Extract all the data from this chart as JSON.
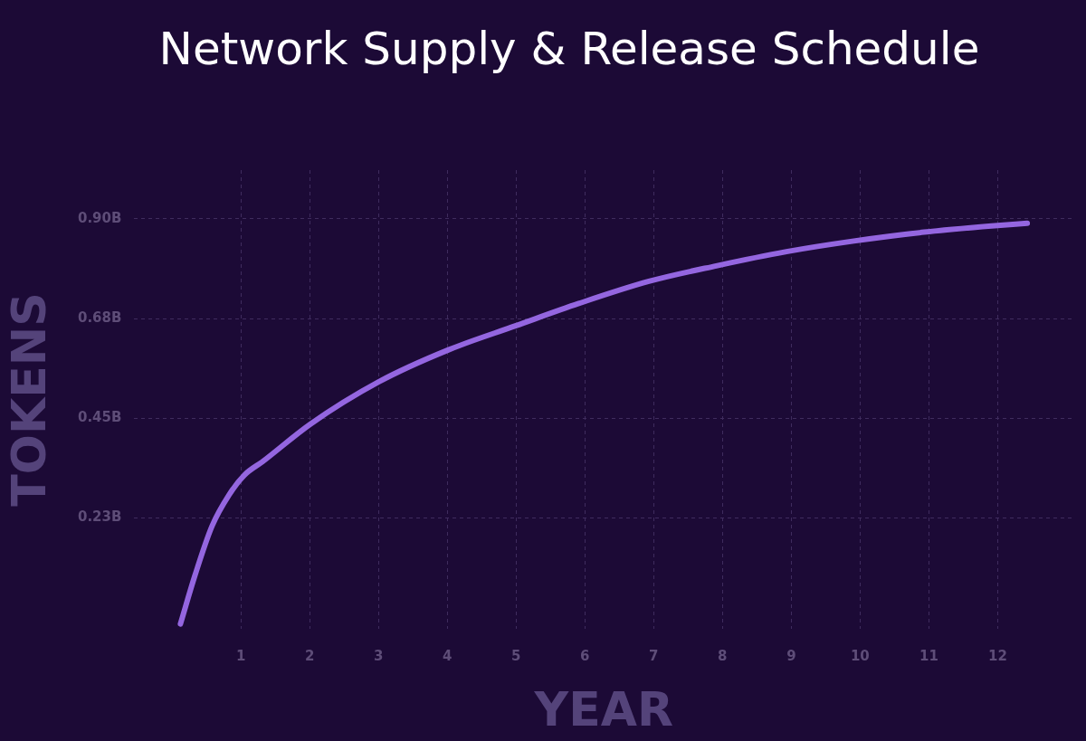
{
  "chart_data": {
    "type": "line",
    "title": "Network Supply & Release Schedule",
    "xlabel": "YEAR",
    "ylabel": "TOKENS",
    "x": [
      0.12,
      0.33,
      0.58,
      0.83,
      1.05,
      1.32,
      2.01,
      3.0,
      4.01,
      5.0,
      5.91,
      6.93,
      7.91,
      8.93,
      9.91,
      10.93,
      11.91,
      12.43
    ],
    "series": [
      {
        "color": "#9466e0",
        "values": [
          -0.014,
          0.095,
          0.207,
          0.278,
          0.322,
          0.353,
          0.437,
          0.532,
          0.604,
          0.659,
          0.709,
          0.759,
          0.794,
          0.826,
          0.85,
          0.87,
          0.884,
          0.89
        ]
      }
    ],
    "xlim": [
      -0.55,
      13.1
    ],
    "xticks": [
      1,
      2,
      3,
      4,
      5,
      6,
      7,
      8,
      9,
      10,
      11,
      12
    ],
    "ylim": [
      -0.025,
      1.01
    ],
    "yticks": [
      {
        "value": 0.225,
        "label": "0.23B"
      },
      {
        "value": 0.45,
        "label": "0.45B"
      },
      {
        "value": 0.675,
        "label": "0.68B"
      },
      {
        "value": 0.9,
        "label": "0.90B"
      }
    ],
    "grid": true,
    "legend": false,
    "marker": "none",
    "line_style": "solid"
  }
}
